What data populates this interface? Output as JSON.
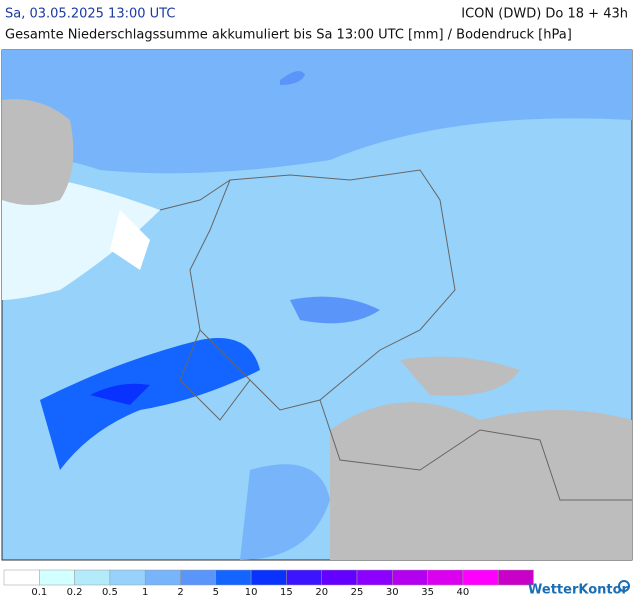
{
  "header": {
    "date": "Sa, 03.05.2025 13:00 UTC",
    "model": "ICON (DWD) Do 18 + 43h",
    "subtitle": "Gesamte Niederschlagssumme akkumuliert bis Sa 13:00 UTC [mm] / Bodendruck [hPa]"
  },
  "legend": {
    "colors": [
      "#ffffff",
      "#d2ffff",
      "#b4ebfa",
      "#96d2fa",
      "#78b4fa",
      "#5a96fa",
      "#1464ff",
      "#0a32ff",
      "#3c14ff",
      "#6400ff",
      "#8c00ff",
      "#b400f0",
      "#dc00f0",
      "#ff00ff",
      "#c800c8"
    ],
    "labels": [
      "0.1",
      "0.2",
      "0.5",
      "1",
      "2",
      "5",
      "10",
      "15",
      "20",
      "25",
      "30",
      "35",
      "40"
    ]
  },
  "brand": "WetterKontor"
}
